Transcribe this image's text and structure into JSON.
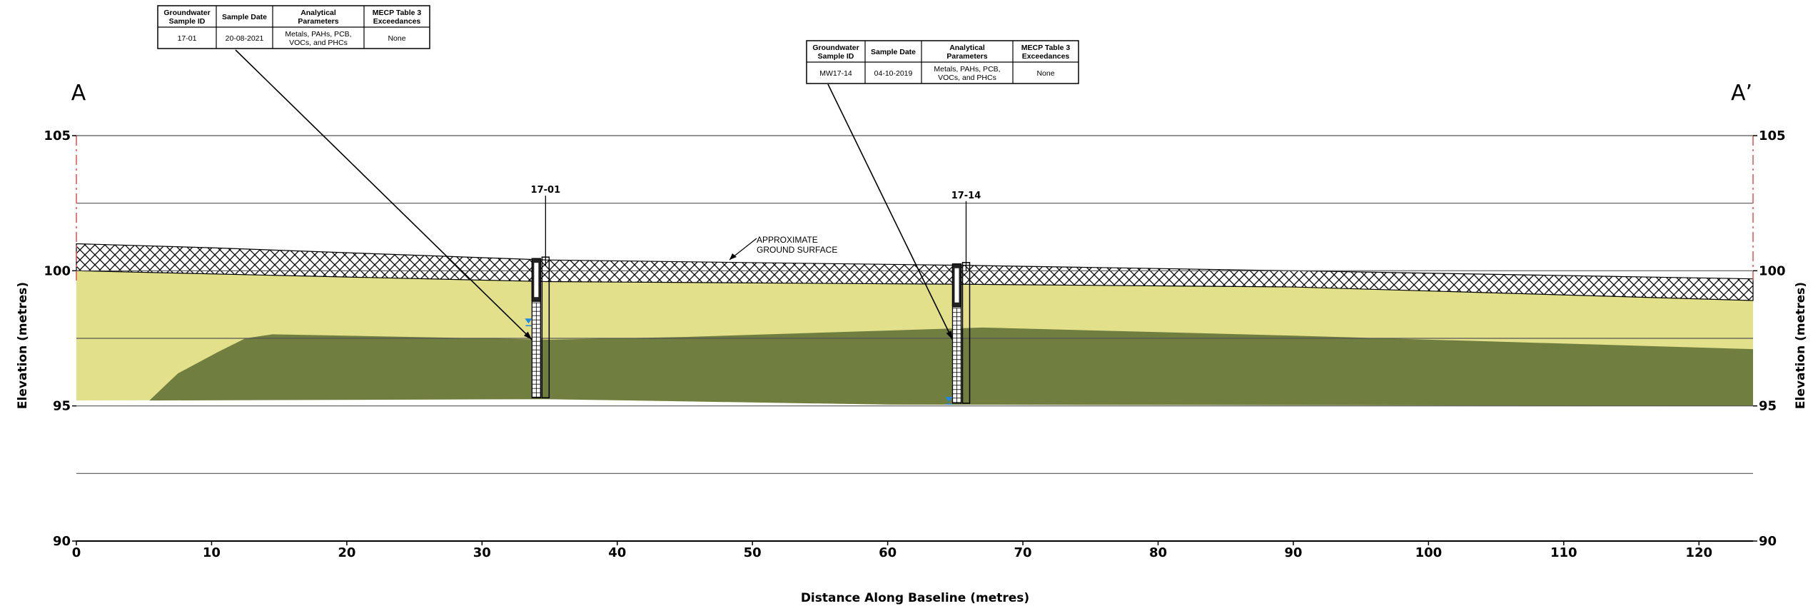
{
  "section": {
    "start": "A",
    "end": "A’"
  },
  "axes": {
    "xlabel": "Distance Along Baseline (metres)",
    "ylabel": "Elevation (metres)",
    "xlim": [
      0,
      124
    ],
    "ylim": [
      90,
      105
    ],
    "x_ticks": [
      "0",
      "10",
      "20",
      "30",
      "40",
      "50",
      "60",
      "70",
      "80",
      "90",
      "100",
      "110",
      "120"
    ],
    "y_ticks": [
      "90",
      "95",
      "100",
      "105"
    ],
    "grid_y": [
      92.5,
      97.5,
      102.5
    ]
  },
  "ground_note": {
    "line1": "APPROXIMATE",
    "line2": "GROUND SURFACE"
  },
  "wells": [
    {
      "label": "17-01",
      "x": 34.7,
      "top": 100.4,
      "bottom": 95.3,
      "water": 98.1
    },
    {
      "label": "17-14",
      "x": 65.8,
      "top": 100.2,
      "bottom": 95.1,
      "water": 95.2
    }
  ],
  "sample_tables": [
    {
      "headers": [
        "Groundwater Sample ID",
        "Sample Date",
        "Analytical Parameters",
        "MECP Table 3 Exceedances"
      ],
      "row": [
        "17-01",
        "20-08-2021",
        "Metals, PAHs, PCB, VOCs, and PHCs",
        "None"
      ]
    },
    {
      "headers": [
        "Groundwater Sample ID",
        "Sample Date",
        "Analytical Parameters",
        "MECP Table 3 Exceedances"
      ],
      "row": [
        "MW17-14",
        "04-10-2019",
        "Metals, PAHs, PCB, VOCs, and PHCs",
        "None"
      ]
    }
  ],
  "layers": [
    {
      "id": "fill",
      "color": "#ffffff",
      "hatch": "crosshatch",
      "top": [
        [
          0,
          101.0
        ],
        [
          10,
          100.85
        ],
        [
          34.7,
          100.4
        ],
        [
          65.8,
          100.2
        ],
        [
          90,
          100.0
        ],
        [
          124,
          99.7
        ]
      ],
      "bottom": [
        [
          0,
          100.0
        ],
        [
          34.7,
          99.6
        ],
        [
          65.8,
          99.5
        ],
        [
          90,
          99.4
        ],
        [
          124,
          98.9
        ]
      ]
    },
    {
      "id": "upper-soil",
      "color": "#e2e08a",
      "top": [
        [
          0,
          100.0
        ],
        [
          34.7,
          99.6
        ],
        [
          65.8,
          99.5
        ],
        [
          90,
          99.4
        ],
        [
          124,
          98.9
        ]
      ],
      "bottom": [
        [
          0,
          95.2
        ],
        [
          34.7,
          95.25
        ],
        [
          60,
          95.05
        ],
        [
          124,
          95.0
        ]
      ]
    },
    {
      "id": "lower-soil",
      "color": "#707f40",
      "top": [
        [
          5.4,
          95.2
        ],
        [
          7.5,
          96.2
        ],
        [
          10.5,
          97.0
        ],
        [
          12.5,
          97.5
        ],
        [
          14.5,
          97.65
        ],
        [
          35,
          97.45
        ],
        [
          45,
          97.55
        ],
        [
          67,
          97.9
        ],
        [
          90,
          97.6
        ],
        [
          124,
          97.1
        ]
      ],
      "bottom": [
        [
          5.4,
          95.2
        ],
        [
          34.7,
          95.25
        ],
        [
          60,
          95.05
        ],
        [
          124,
          95.0
        ]
      ]
    }
  ],
  "colors": {
    "water_marker": "#1e88e5",
    "section_line": "#e05050",
    "grid": "#555555"
  }
}
